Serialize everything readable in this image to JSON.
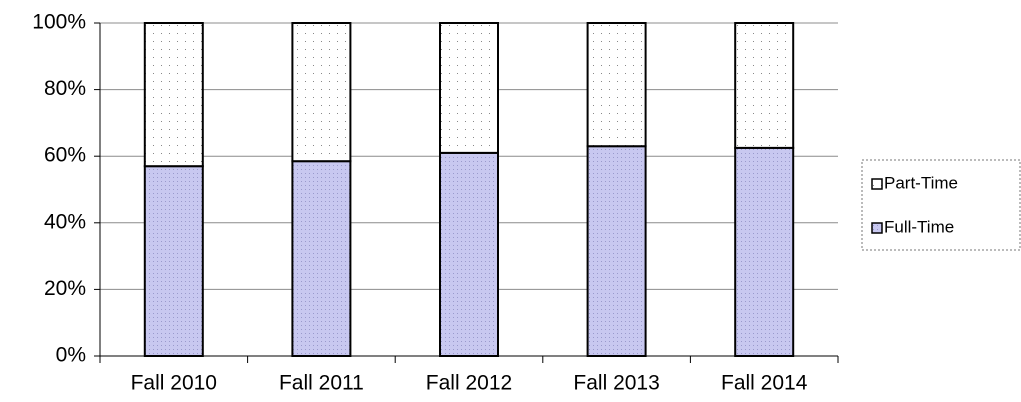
{
  "chart_data": {
    "type": "stacked_bar",
    "categories": [
      "Fall 2010",
      "Fall 2011",
      "Fall 2012",
      "Fall 2013",
      "Fall 2014"
    ],
    "series": [
      {
        "name": "Full-Time",
        "color": "#c8c8f0",
        "values": [
          57,
          58.5,
          61,
          63,
          62.5
        ]
      },
      {
        "name": "Part-Time",
        "color": "#ffffff",
        "values": [
          43,
          41.5,
          39,
          37,
          37.5
        ]
      }
    ],
    "ylim": [
      0,
      100
    ],
    "yticks": [
      {
        "value": 0,
        "label": "0%"
      },
      {
        "value": 20,
        "label": "20%"
      },
      {
        "value": 40,
        "label": "40%"
      },
      {
        "value": 60,
        "label": "60%"
      },
      {
        "value": 80,
        "label": "80%"
      },
      {
        "value": 100,
        "label": "100%"
      }
    ],
    "grid": true,
    "legend": "right"
  }
}
